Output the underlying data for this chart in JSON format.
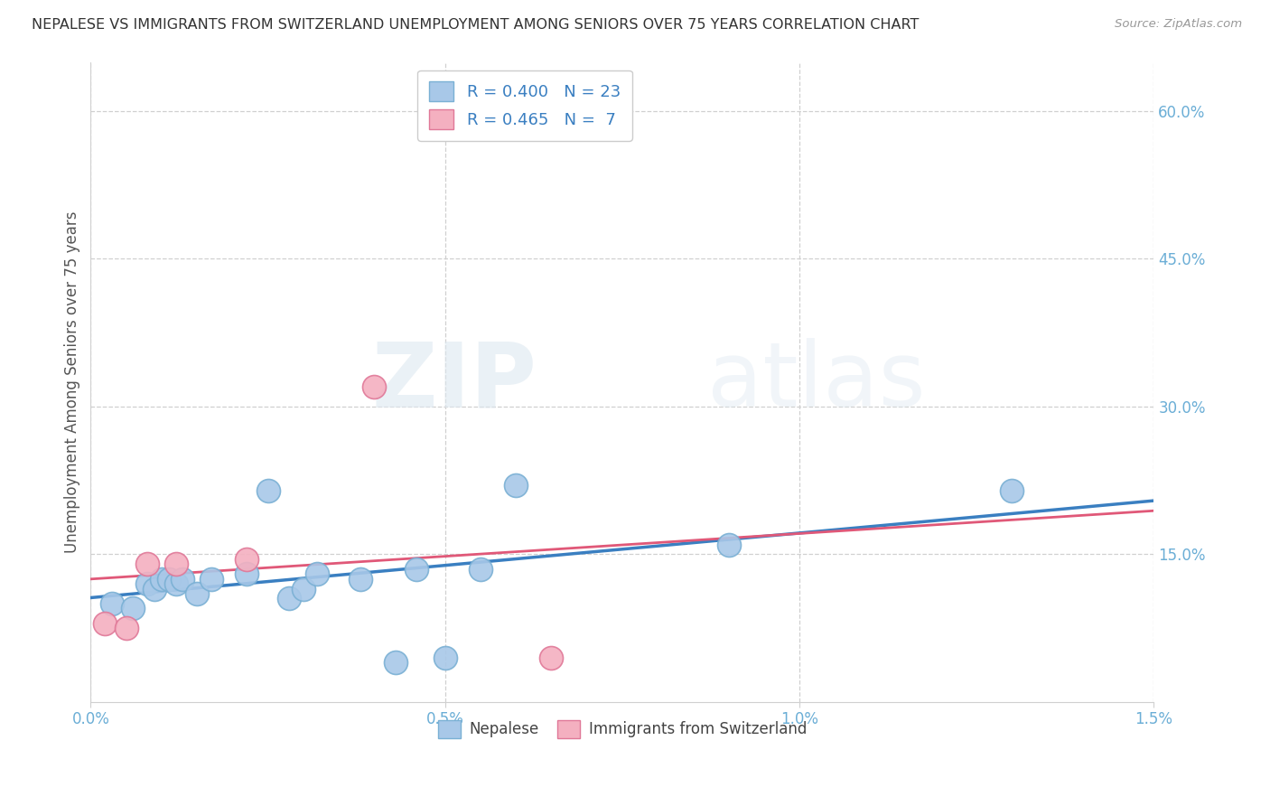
{
  "title": "NEPALESE VS IMMIGRANTS FROM SWITZERLAND UNEMPLOYMENT AMONG SENIORS OVER 75 YEARS CORRELATION CHART",
  "source": "Source: ZipAtlas.com",
  "ylabel": "Unemployment Among Seniors over 75 years",
  "xlim": [
    0.0,
    1.5
  ],
  "ylim": [
    0.0,
    65.0
  ],
  "ytick_labels": [
    "15.0%",
    "30.0%",
    "45.0%",
    "60.0%"
  ],
  "ytick_values": [
    15.0,
    30.0,
    45.0,
    60.0
  ],
  "nepalese_x": [
    0.03,
    0.06,
    0.08,
    0.09,
    0.1,
    0.11,
    0.12,
    0.13,
    0.15,
    0.17,
    0.22,
    0.25,
    0.28,
    0.3,
    0.32,
    0.38,
    0.43,
    0.46,
    0.5,
    0.55,
    0.6,
    0.9,
    1.3
  ],
  "nepalese_y": [
    10.0,
    9.5,
    12.0,
    11.5,
    12.5,
    12.5,
    12.0,
    12.5,
    11.0,
    12.5,
    13.0,
    21.5,
    10.5,
    11.5,
    13.0,
    12.5,
    4.0,
    13.5,
    4.5,
    13.5,
    22.0,
    16.0,
    21.5
  ],
  "swiss_x": [
    0.02,
    0.05,
    0.08,
    0.12,
    0.22,
    0.4,
    0.65
  ],
  "swiss_y": [
    8.0,
    7.5,
    14.0,
    14.0,
    14.5,
    32.0,
    4.5
  ],
  "nepalese_color": "#a8c8e8",
  "nepalese_edge_color": "#7ab0d4",
  "swiss_color": "#f4b0c0",
  "swiss_edge_color": "#e07898",
  "nepalese_line_color": "#3a7fc1",
  "swiss_line_color": "#e05878",
  "R_nepalese": 0.4,
  "N_nepalese": 23,
  "R_swiss": 0.465,
  "N_swiss": 7,
  "legend_label_nepalese": "Nepalese",
  "legend_label_swiss": "Immigrants from Switzerland",
  "watermark_zip": "ZIP",
  "watermark_atlas": "atlas",
  "background_color": "#ffffff",
  "title_color": "#333333",
  "axis_tick_color": "#6baed6",
  "grid_color": "#d0d0d0",
  "ylabel_color": "#555555"
}
